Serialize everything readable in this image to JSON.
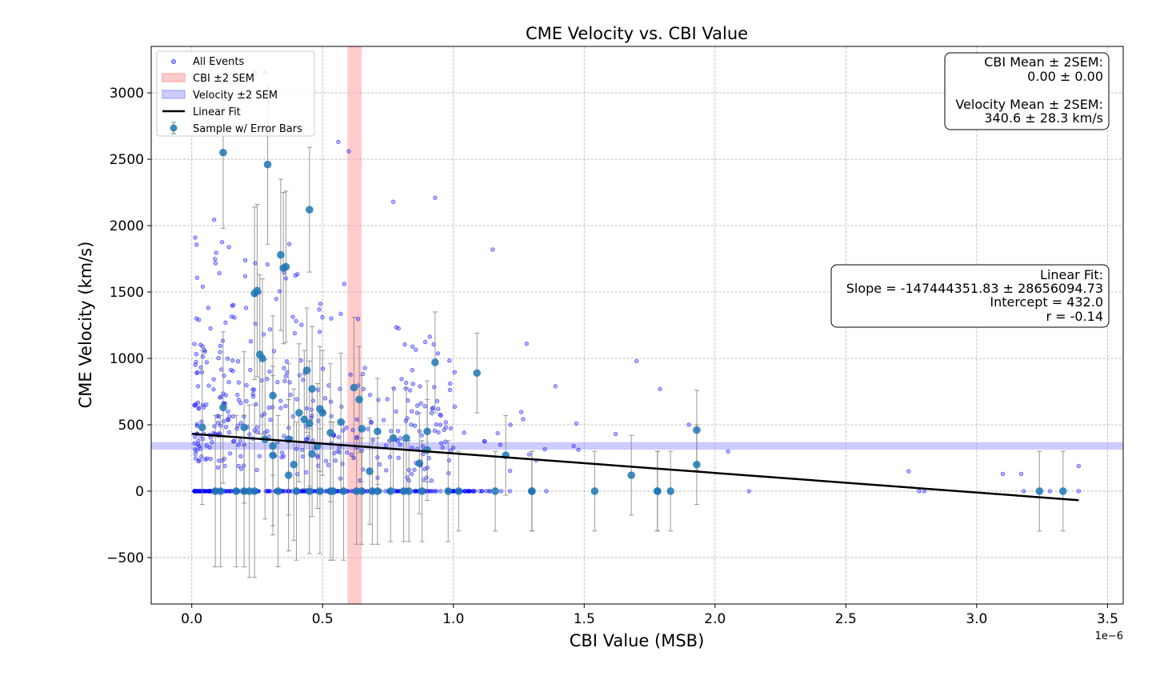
{
  "chart_data": {
    "type": "scatter",
    "title": "CME Velocity vs. CBI Value",
    "xlabel": "CBI Value (MSB)",
    "ylabel": "CME Velocity (km/s)",
    "x_offset_label": "1e−6",
    "xlim": [
      -1.55e-07,
      3.56e-06
    ],
    "ylim": [
      -850,
      3350
    ],
    "x_ticks": [
      0,
      5e-07,
      1e-06,
      1.5e-06,
      2e-06,
      2.5e-06,
      3e-06,
      3.5e-06
    ],
    "x_tick_labels": [
      "0.0",
      "0.5",
      "1.0",
      "1.5",
      "2.0",
      "2.5",
      "3.0",
      "3.5"
    ],
    "y_ticks": [
      -500,
      0,
      500,
      1000,
      1500,
      2000,
      2500,
      3000
    ],
    "y_tick_labels": [
      "−500",
      "0",
      "500",
      "1000",
      "1500",
      "2000",
      "2500",
      "3000"
    ],
    "grid": true,
    "legend": {
      "position": "top-left",
      "entries": [
        "All Events",
        "CBI ±2 SEM",
        "Velocity ±2 SEM",
        "Linear Fit",
        "Sample w/ Error Bars"
      ]
    },
    "colors": {
      "all_events": "#0000ff",
      "cbi_band": "#ff9999",
      "velocity_band": "#9999ff",
      "fit_line": "#000000",
      "sample": "#1f77b4",
      "error_bar": "#808080"
    },
    "cbi_band": [
      5.95e-07,
      6.5e-07
    ],
    "velocity_band": [
      312.3,
      368.9
    ],
    "linear_fit": {
      "slope": -147444351.83,
      "intercept": 432.0,
      "x_range": [
        0,
        3.39e-06
      ]
    },
    "stats_box": {
      "lines": [
        "CBI Mean ± 2SEM:",
        "0.00 ± 0.00",
        "",
        "Velocity Mean ± 2SEM:",
        "340.6 ± 28.3 km/s"
      ]
    },
    "fit_box": {
      "lines": [
        "Linear Fit:",
        "Slope = -147444351.83 ± 28656094.73",
        "Intercept = 432.0",
        "r = -0.14"
      ]
    },
    "sample_points": [
      {
        "x": 4e-08,
        "y": 480,
        "err": 580
      },
      {
        "x": 9e-08,
        "y": 0,
        "err": 570
      },
      {
        "x": 1.1e-07,
        "y": 0,
        "err": 570
      },
      {
        "x": 1.2e-07,
        "y": 630,
        "err": 570
      },
      {
        "x": 1.2e-07,
        "y": 2550,
        "err": 570
      },
      {
        "x": 1.7e-07,
        "y": 0,
        "err": 570
      },
      {
        "x": 2e-07,
        "y": 480,
        "err": 570
      },
      {
        "x": 2e-07,
        "y": 0,
        "err": 570
      },
      {
        "x": 2.2e-07,
        "y": 0,
        "err": 650
      },
      {
        "x": 2.4e-07,
        "y": 0,
        "err": 650
      },
      {
        "x": 2.4e-07,
        "y": 1490,
        "err": 650
      },
      {
        "x": 2.5e-07,
        "y": 1510,
        "err": 650
      },
      {
        "x": 2.6e-07,
        "y": 1030,
        "err": 600
      },
      {
        "x": 2.7e-07,
        "y": 1000,
        "err": 600
      },
      {
        "x": 2.8e-07,
        "y": 390,
        "err": 600
      },
      {
        "x": 2.9e-07,
        "y": 2460,
        "err": 600
      },
      {
        "x": 3.1e-07,
        "y": 720,
        "err": 600
      },
      {
        "x": 3.1e-07,
        "y": 270,
        "err": 600
      },
      {
        "x": 3.1e-07,
        "y": 340,
        "err": 600
      },
      {
        "x": 3.3e-07,
        "y": 0,
        "err": 570
      },
      {
        "x": 3.4e-07,
        "y": 1780,
        "err": 570
      },
      {
        "x": 3.5e-07,
        "y": 1680,
        "err": 570
      },
      {
        "x": 3.6e-07,
        "y": 1690,
        "err": 570
      },
      {
        "x": 3.7e-07,
        "y": 390,
        "err": 570
      },
      {
        "x": 3.7e-07,
        "y": 120,
        "err": 570
      },
      {
        "x": 3.9e-07,
        "y": 200,
        "err": 570
      },
      {
        "x": 4e-07,
        "y": 0,
        "err": 520
      },
      {
        "x": 4.1e-07,
        "y": 590,
        "err": 520
      },
      {
        "x": 4.3e-07,
        "y": 540,
        "err": 520
      },
      {
        "x": 4.4e-07,
        "y": 910,
        "err": 470
      },
      {
        "x": 4.5e-07,
        "y": 0,
        "err": 470
      },
      {
        "x": 4.5e-07,
        "y": 2120,
        "err": 470
      },
      {
        "x": 4.5e-07,
        "y": 510,
        "err": 470
      },
      {
        "x": 4.6e-07,
        "y": 770,
        "err": 470
      },
      {
        "x": 4.6e-07,
        "y": 280,
        "err": 470
      },
      {
        "x": 4.8e-07,
        "y": 340,
        "err": 470
      },
      {
        "x": 4.9e-07,
        "y": 620,
        "err": 470
      },
      {
        "x": 4.9e-07,
        "y": 0,
        "err": 470
      },
      {
        "x": 5e-07,
        "y": 590,
        "err": 470
      },
      {
        "x": 5.3e-07,
        "y": 440,
        "err": 520
      },
      {
        "x": 5.3e-07,
        "y": 0,
        "err": 520
      },
      {
        "x": 5.4e-07,
        "y": 0,
        "err": 520
      },
      {
        "x": 5.7e-07,
        "y": 520,
        "err": 520
      },
      {
        "x": 5.8e-07,
        "y": 0,
        "err": 520
      },
      {
        "x": 6.2e-07,
        "y": 780,
        "err": 530
      },
      {
        "x": 6.3e-07,
        "y": 0,
        "err": 400
      },
      {
        "x": 6.4e-07,
        "y": 690,
        "err": 400
      },
      {
        "x": 6.5e-07,
        "y": 470,
        "err": 400
      },
      {
        "x": 6.5e-07,
        "y": 0,
        "err": 400
      },
      {
        "x": 6.8e-07,
        "y": 150,
        "err": 400
      },
      {
        "x": 6.9e-07,
        "y": 0,
        "err": 400
      },
      {
        "x": 7.1e-07,
        "y": 450,
        "err": 400
      },
      {
        "x": 7.1e-07,
        "y": 0,
        "err": 400
      },
      {
        "x": 7.6e-07,
        "y": 0,
        "err": 380
      },
      {
        "x": 7.7e-07,
        "y": 400,
        "err": 380
      },
      {
        "x": 8.1e-07,
        "y": 0,
        "err": 380
      },
      {
        "x": 8.2e-07,
        "y": 400,
        "err": 380
      },
      {
        "x": 8.3e-07,
        "y": 0,
        "err": 380
      },
      {
        "x": 8.7e-07,
        "y": 210,
        "err": 380
      },
      {
        "x": 8.8e-07,
        "y": 0,
        "err": 380
      },
      {
        "x": 9e-07,
        "y": 450,
        "err": 380
      },
      {
        "x": 9e-07,
        "y": 310,
        "err": 380
      },
      {
        "x": 9.3e-07,
        "y": 970,
        "err": 380
      },
      {
        "x": 9.8e-07,
        "y": 0,
        "err": 380
      },
      {
        "x": 1.02e-06,
        "y": 0,
        "err": 300
      },
      {
        "x": 1.09e-06,
        "y": 890,
        "err": 300
      },
      {
        "x": 1.16e-06,
        "y": 0,
        "err": 300
      },
      {
        "x": 1.2e-06,
        "y": 270,
        "err": 300
      },
      {
        "x": 1.3e-06,
        "y": 0,
        "err": 300
      },
      {
        "x": 1.3e-06,
        "y": 0,
        "err": 300
      },
      {
        "x": 1.54e-06,
        "y": 0,
        "err": 300
      },
      {
        "x": 1.68e-06,
        "y": 120,
        "err": 300
      },
      {
        "x": 1.78e-06,
        "y": 0,
        "err": 300
      },
      {
        "x": 1.78e-06,
        "y": 0,
        "err": 300
      },
      {
        "x": 1.83e-06,
        "y": 0,
        "err": 300
      },
      {
        "x": 1.93e-06,
        "y": 460,
        "err": 300
      },
      {
        "x": 1.93e-06,
        "y": 200,
        "err": 300
      },
      {
        "x": 3.24e-06,
        "y": 0,
        "err": 300
      },
      {
        "x": 3.33e-06,
        "y": 0,
        "err": 300
      }
    ],
    "all_events_extra": [
      {
        "x": 2.4e-07,
        "y": 3150
      },
      {
        "x": 2.8e-07,
        "y": 3160
      },
      {
        "x": 5.6e-07,
        "y": 2630
      },
      {
        "x": 6e-07,
        "y": 2560
      },
      {
        "x": 7.7e-07,
        "y": 2180
      },
      {
        "x": 9.3e-07,
        "y": 2210
      },
      {
        "x": 1.15e-06,
        "y": 1820
      },
      {
        "x": 1.7e-06,
        "y": 980
      },
      {
        "x": 1.79e-06,
        "y": 770
      },
      {
        "x": 1.9e-06,
        "y": 500
      },
      {
        "x": 2.05e-06,
        "y": 300
      },
      {
        "x": 2.13e-06,
        "y": 0
      },
      {
        "x": 2.74e-06,
        "y": 150
      },
      {
        "x": 2.78e-06,
        "y": 0
      },
      {
        "x": 2.8e-06,
        "y": 0
      },
      {
        "x": 3.1e-06,
        "y": 130
      },
      {
        "x": 3.17e-06,
        "y": 130
      },
      {
        "x": 3.18e-06,
        "y": 0
      },
      {
        "x": 3.28e-06,
        "y": 0
      },
      {
        "x": 3.39e-06,
        "y": 190
      },
      {
        "x": 3.39e-06,
        "y": 0
      },
      {
        "x": 1.39e-06,
        "y": 790
      },
      {
        "x": 1.28e-06,
        "y": 1110
      },
      {
        "x": 1.62e-06,
        "y": 430
      },
      {
        "x": 1.47e-06,
        "y": 510
      }
    ]
  }
}
